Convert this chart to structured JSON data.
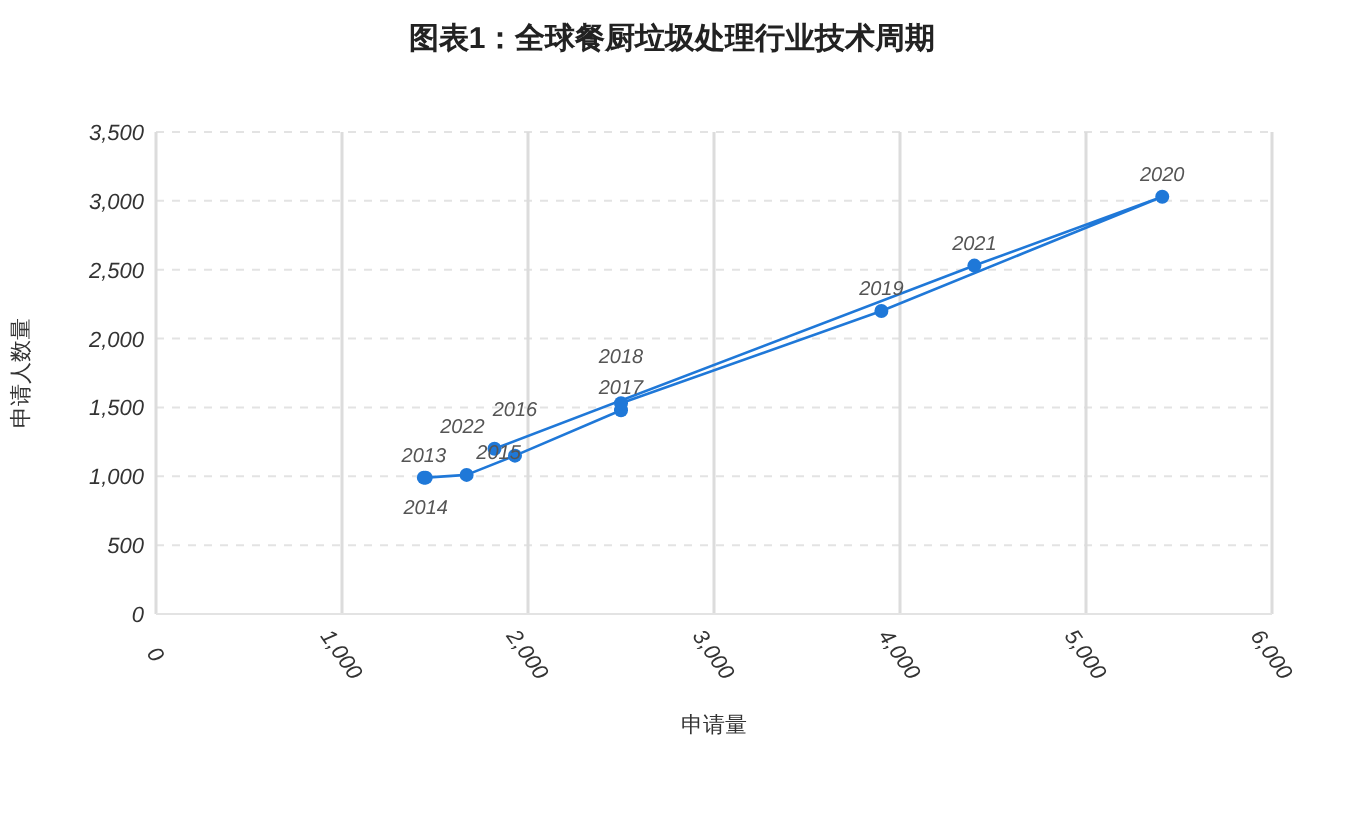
{
  "chart_data": {
    "type": "line",
    "title": "图表1：全球餐厨垃圾处理行业技术周期",
    "xlabel": "申请量",
    "ylabel": "申请人数量",
    "x": [
      1440,
      1450,
      1670,
      1930,
      2500,
      2500,
      3900,
      5410,
      4400,
      1820
    ],
    "series": [
      {
        "color": "#1f78d8",
        "values": [
          990,
          990,
          1010,
          1150,
          1480,
          1530,
          2200,
          3030,
          2530,
          1200
        ]
      }
    ],
    "annotations": [
      {
        "text": "2013",
        "x": 1440,
        "y": 990
      },
      {
        "text": "2014",
        "x": 1450,
        "y": 990
      },
      {
        "text": "2015",
        "x": 1670,
        "y": 1010
      },
      {
        "text": "2016",
        "x": 1930,
        "y": 1150
      },
      {
        "text": "2017",
        "x": 2500,
        "y": 1480
      },
      {
        "text": "2018",
        "x": 2500,
        "y": 1530
      },
      {
        "text": "2019",
        "x": 3900,
        "y": 2200
      },
      {
        "text": "2020",
        "x": 5410,
        "y": 3030
      },
      {
        "text": "2021",
        "x": 4400,
        "y": 2530
      },
      {
        "text": "2022",
        "x": 1820,
        "y": 1200
      }
    ],
    "xlim": [
      0,
      6000
    ],
    "xticks": [
      {
        "value": 0,
        "label": "0"
      },
      {
        "value": 1000,
        "label": "1,000"
      },
      {
        "value": 2000,
        "label": "2,000"
      },
      {
        "value": 3000,
        "label": "3,000"
      },
      {
        "value": 4000,
        "label": "4,000"
      },
      {
        "value": 5000,
        "label": "5,000"
      },
      {
        "value": 6000,
        "label": "6,000"
      }
    ],
    "ylim": [
      0,
      3500
    ],
    "yticks": [
      {
        "value": 0,
        "label": "0"
      },
      {
        "value": 500,
        "label": "500"
      },
      {
        "value": 1000,
        "label": "1,000"
      },
      {
        "value": 1500,
        "label": "1,500"
      },
      {
        "value": 2000,
        "label": "2,000"
      },
      {
        "value": 2500,
        "label": "2,500"
      },
      {
        "value": 3000,
        "label": "3,000"
      },
      {
        "value": 3500,
        "label": "3,500"
      }
    ],
    "grid": true,
    "marker": "circle",
    "line_style": "solid"
  }
}
